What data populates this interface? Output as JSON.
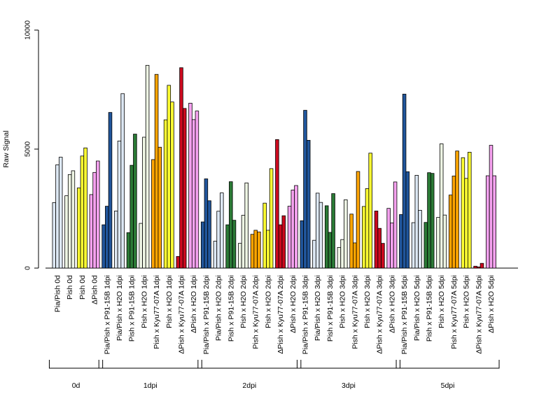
{
  "chart_data": {
    "type": "bar",
    "title": "",
    "xlabel": "",
    "ylabel": "Raw Signal",
    "ylim": [
      0,
      10000
    ],
    "yticks": [
      0,
      5000,
      10000
    ],
    "grid": false,
    "legend": "none",
    "categories": [
      "Pia/Pish 0d",
      "Pish 0d",
      "Pish 0d",
      "ΔPish 0d",
      "Pia/Pish x P91-15B 1dpi",
      "Pia/Pish x H2O 1dpi",
      "Pish x P91-15B 1dpi",
      "Pish x H2O 1dpi",
      "Pish x Kyu77-07A 1dpi",
      "Pish x H2O 1dpi",
      "ΔPish x Kyu77-07A 1dpi",
      "ΔPish x H2O 1dpi",
      "Pia/Pish x P91-15B 2dpi",
      "Pia/Pish x H2O 2dpi",
      "Pish x P91-15B 2dpi",
      "Pish x H2O 2dpi",
      "Pish x Kyu77-07A 2dpi",
      "Pish x H2O 2dpi",
      "ΔPish x Kyu77-07A 2dpi",
      "ΔPish x H2O 2dpi",
      "Pia/Pish x P91-15B 3dpi",
      "Pia/Pish x H2O 3dpi",
      "Pish x P91-15B 3dpi",
      "Pish x H2O 3dpi",
      "Pish x Kyu77-07A 3dpi",
      "Pish x H2O 3dpi",
      "ΔPish x Kyu77-07A 3dpi",
      "ΔPish x H2O 3dpi",
      "Pia/Pish x P91-15B 5dpi",
      "Pia/Pish x H2O 5dpi",
      "Pish x P91-15B 5dpi",
      "Pish x H2O 5dpi",
      "Pish x Kyu77-07A 5dpi",
      "Pish x H2O 5dpi",
      "ΔPish x Kyu77-07A 5dpi",
      "ΔPish x H2O 5dpi"
    ],
    "colors": [
      "#dde8f4",
      "#eef5e4",
      "#ffff33",
      "#f6a2f0",
      "#21569c",
      "#dde8f4",
      "#2b7a36",
      "#eef5e4",
      "#ffa500",
      "#ffff33",
      "#cc0a1f",
      "#f6a2f0",
      "#21569c",
      "#dde8f4",
      "#2b7a36",
      "#eef5e4",
      "#ffa500",
      "#ffff33",
      "#cc0a1f",
      "#f6a2f0",
      "#21569c",
      "#dde8f4",
      "#2b7a36",
      "#eef5e4",
      "#ffa500",
      "#ffff33",
      "#cc0a1f",
      "#f6a2f0",
      "#21569c",
      "#dde8f4",
      "#2b7a36",
      "#eef5e4",
      "#ffa500",
      "#ffff33",
      "#cc0a1f",
      "#f6a2f0"
    ],
    "values": [
      [
        2750,
        4340,
        4660
      ],
      [
        3040,
        3930,
        4090
      ],
      [
        3370,
        4710,
        5050
      ],
      [
        3090,
        4020,
        4500
      ],
      [
        1820,
        2600,
        6540
      ],
      [
        2400,
        5340,
        7330
      ],
      [
        1490,
        4320,
        5630
      ],
      [
        1880,
        5500,
        8520
      ],
      [
        4560,
        8140,
        5080
      ],
      [
        6230,
        7680,
        6980
      ],
      [
        490,
        8420,
        6710
      ],
      [
        6930,
        6240,
        6600
      ],
      [
        1940,
        3750,
        2830
      ],
      [
        1130,
        2390,
        3160
      ],
      [
        1820,
        3630,
        2010
      ],
      [
        1040,
        2220,
        3580
      ],
      [
        1420,
        1590,
        1520
      ],
      [
        2730,
        1590,
        4180
      ],
      [
        5400,
        1820,
        2200
      ],
      [
        2600,
        3280,
        3470
      ],
      [
        1990,
        6630,
        5370
      ],
      [
        1170,
        3150,
        2760
      ],
      [
        2620,
        1500,
        3130
      ],
      [
        870,
        1200,
        2870
      ],
      [
        2270,
        1060,
        4060
      ],
      [
        2590,
        3340,
        4830
      ],
      [
        2400,
        1670,
        1040
      ],
      [
        2510,
        1900,
        3620
      ],
      [
        2250,
        7310,
        4050
      ],
      [
        1910,
        3900,
        2430
      ],
      [
        1920,
        4010,
        3980
      ],
      [
        2130,
        5220,
        2230
      ],
      [
        3070,
        3870,
        4920
      ],
      [
        4640,
        3770,
        4870
      ],
      [
        80,
        50,
        200
      ],
      [
        3880,
        5160,
        3880
      ]
    ],
    "groups": [
      {
        "label": "0d",
        "start": 0,
        "end": 3
      },
      {
        "label": "1dpi",
        "start": 4,
        "end": 11
      },
      {
        "label": "2dpi",
        "start": 12,
        "end": 19
      },
      {
        "label": "3dpi",
        "start": 20,
        "end": 27
      },
      {
        "label": "5dpi",
        "start": 28,
        "end": 35
      }
    ]
  }
}
